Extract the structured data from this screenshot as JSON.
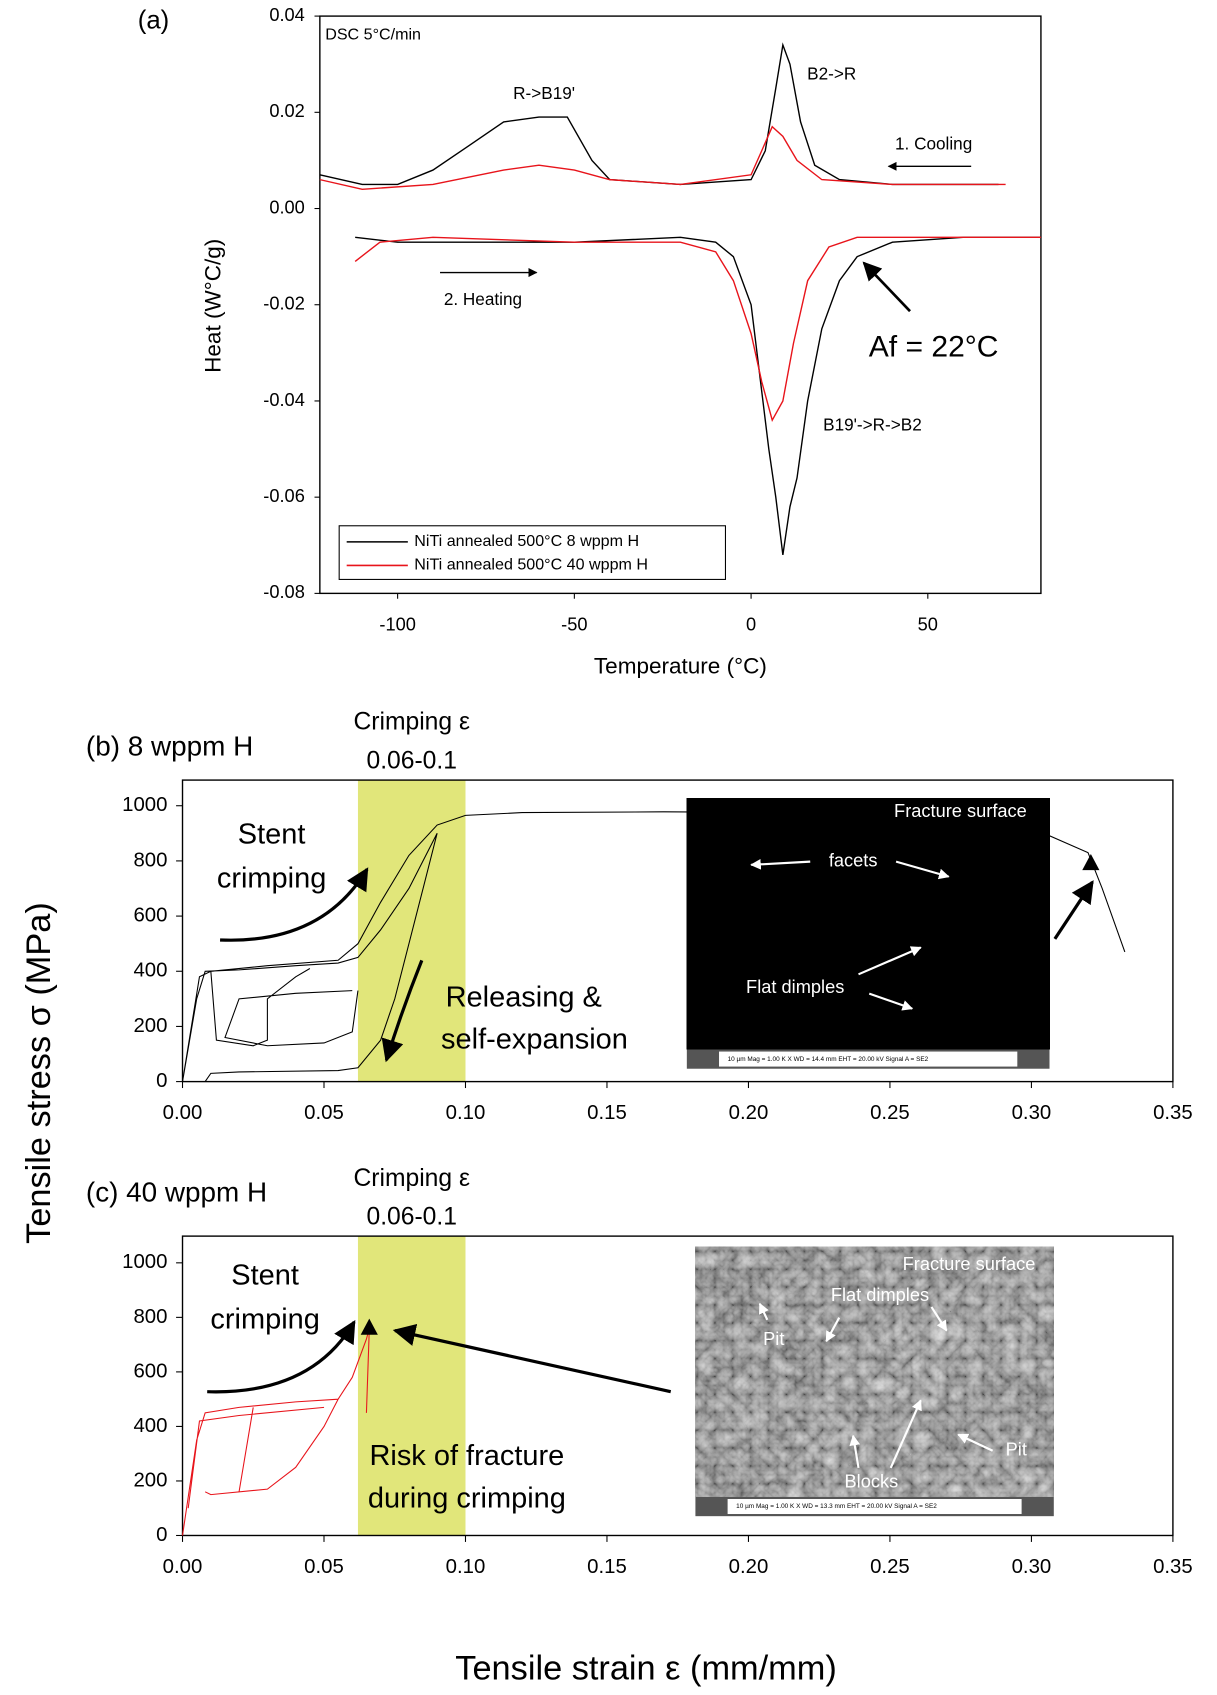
{
  "chart_data": [
    {
      "type": "line",
      "label": "(a)",
      "xlabel": "Temperature (°C)",
      "ylabel": "Heat (W°C/g)",
      "xlim": [
        -122,
        82
      ],
      "ylim": [
        -0.08,
        0.04
      ],
      "xticks": [
        -100,
        -50,
        0,
        50
      ],
      "yticks": [
        0.04,
        0.02,
        {
          "value": 0,
          "label": "0.00"
        },
        -0.02,
        -0.04,
        -0.06,
        -0.08
      ],
      "legend": "lower left",
      "annotations": [
        "DSC 5°C/min",
        "R->B19'",
        "B2->R",
        "1. Cooling",
        "2. Heating",
        "Af = 22°C",
        "B19'->R->B2"
      ],
      "series": [
        {
          "name": "NiTi annealed 500°C 8 wppm H",
          "color": "#000000",
          "x": [
            -122,
            -110,
            -100,
            -90,
            -80,
            -70,
            -60,
            -52,
            -45,
            -40,
            -20,
            0,
            4,
            7,
            9,
            11,
            14,
            18,
            25,
            40,
            70,
            null,
            -112,
            -100,
            -80,
            -50,
            -20,
            -10,
            -5,
            0,
            2,
            5,
            7,
            9,
            11,
            13,
            16,
            20,
            25,
            30,
            40,
            60,
            82
          ],
          "values": [
            0.007,
            0.005,
            0.005,
            0.008,
            0.013,
            0.018,
            0.019,
            0.019,
            0.01,
            0.006,
            0.005,
            0.006,
            0.012,
            0.025,
            0.034,
            0.03,
            0.018,
            0.009,
            0.006,
            0.005,
            0.005,
            null,
            -0.006,
            -0.007,
            -0.007,
            -0.007,
            -0.006,
            -0.007,
            -0.01,
            -0.02,
            -0.032,
            -0.05,
            -0.06,
            -0.072,
            -0.062,
            -0.056,
            -0.04,
            -0.025,
            -0.015,
            -0.01,
            -0.007,
            -0.006,
            -0.006
          ]
        },
        {
          "name": "NiTi annealed 500°C 40 wppm H",
          "color": "#e8141b",
          "x": [
            -122,
            -110,
            -90,
            -70,
            -60,
            -50,
            -40,
            -20,
            0,
            3,
            6,
            9,
            13,
            20,
            40,
            72,
            null,
            -112,
            -105,
            -90,
            -50,
            -20,
            -10,
            -5,
            0,
            3,
            6,
            9,
            12,
            16,
            22,
            30,
            50,
            82
          ],
          "values": [
            0.006,
            0.004,
            0.005,
            0.008,
            0.009,
            0.008,
            0.006,
            0.005,
            0.007,
            0.012,
            0.017,
            0.015,
            0.01,
            0.006,
            0.005,
            0.005,
            null,
            -0.011,
            -0.007,
            -0.006,
            -0.007,
            -0.007,
            -0.009,
            -0.015,
            -0.026,
            -0.036,
            -0.044,
            -0.04,
            -0.028,
            -0.015,
            -0.008,
            -0.006,
            -0.006,
            -0.006
          ]
        }
      ]
    },
    {
      "type": "line",
      "label": "(b) 8 wppm H",
      "ylabel": "Tensile stress σ (MPa)",
      "xlim": [
        0,
        0.35
      ],
      "ylim": [
        0,
        1093
      ],
      "xticks": [
        {
          "value": 0,
          "label": "0.00"
        },
        0.05,
        {
          "value": 0.1,
          "label": "0.10"
        },
        0.15,
        {
          "value": 0.2,
          "label": "0.20"
        },
        0.25,
        {
          "value": 0.3,
          "label": "0.30"
        },
        0.35
      ],
      "yticks": [
        0,
        200,
        400,
        600,
        800,
        1000
      ],
      "shade": {
        "range": [
          0.062,
          0.1
        ],
        "color": "#e1e67a",
        "label": [
          "Crimping ε",
          "0.06-0.1"
        ]
      },
      "annotations": [
        "Stent",
        "crimping",
        "Releasing &",
        "self-expansion"
      ],
      "markers": [
        {
          "x": 0.321,
          "y": 790
        }
      ],
      "inset": {
        "labels": [
          "Fracture surface",
          "facets",
          "Flat dimples"
        ],
        "caption": "10 µm      Mag = 1.00 K X     WD = 14.4 mm    EHT = 20.00 kV   Signal A = SE2"
      },
      "series": [
        {
          "color": "#000000",
          "x": [
            0,
            0.005,
            0.008,
            0.02,
            0.04,
            0.055,
            0.062,
            0.07,
            0.08,
            0.09,
            0.085,
            0.08,
            0.075,
            0.07,
            0.062,
            0.055,
            0.02,
            0.01,
            0.008,
            null,
            0,
            0.006,
            0.01,
            0.03,
            0.055,
            0.062,
            0.07,
            0.08,
            0.09,
            0.1,
            0.12,
            0.17,
            0.22,
            0.27,
            0.3,
            0.32,
            0.325,
            0.333,
            null,
            0.01,
            0.012,
            0.025,
            0.03,
            0.03,
            0.04,
            0.045,
            null,
            0.06,
            0.04,
            0.02,
            0.015,
            0.03,
            0.05,
            0.06,
            0.062
          ],
          "values": [
            0,
            300,
            400,
            405,
            420,
            430,
            450,
            550,
            700,
            900,
            700,
            500,
            300,
            150,
            50,
            40,
            35,
            30,
            0,
            null,
            0,
            380,
            400,
            420,
            440,
            500,
            650,
            820,
            930,
            965,
            975,
            978,
            975,
            955,
            920,
            830,
            700,
            470,
            null,
            400,
            150,
            130,
            150,
            300,
            380,
            410,
            null,
            330,
            320,
            300,
            160,
            130,
            140,
            180,
            330
          ]
        }
      ]
    },
    {
      "type": "line",
      "label": "(c) 40 wppm H",
      "xlabel": "Tensile strain ε (mm/mm)",
      "xlim": [
        0,
        0.35
      ],
      "ylim": [
        0,
        1098
      ],
      "xticks": [
        {
          "value": 0,
          "label": "0.00"
        },
        0.05,
        {
          "value": 0.1,
          "label": "0.10"
        },
        0.15,
        {
          "value": 0.2,
          "label": "0.20"
        },
        0.25,
        {
          "value": 0.3,
          "label": "0.30"
        },
        0.35
      ],
      "yticks": [
        0,
        200,
        400,
        600,
        800,
        1000
      ],
      "shade": {
        "range": [
          0.062,
          0.1
        ],
        "color": "#e1e67a",
        "label": [
          "Crimping ε",
          "0.06-0.1"
        ]
      },
      "annotations": [
        "Stent",
        "crimping",
        "Risk of fracture",
        "during crimping"
      ],
      "markers": [
        {
          "x": 0.066,
          "y": 760
        }
      ],
      "inset": {
        "labels": [
          "Fracture surface",
          "Flat dimples",
          "Pit",
          "Pit",
          "Blocks"
        ],
        "caption": "10 µm      Mag = 1.00 K X     WD = 13.3 mm    EHT = 20.00 kV   Signal A = SE2"
      },
      "series": [
        {
          "color": "#e8141b",
          "x": [
            0,
            0.005,
            0.008,
            0.02,
            0.04,
            0.055,
            0.06,
            0.065,
            0.066,
            0.065,
            null,
            0.055,
            0.05,
            0.04,
            0.03,
            0.01,
            0.008,
            null,
            0.025,
            0.02,
            null,
            0.002,
            0.006,
            0.02,
            0.05
          ],
          "values": [
            0,
            350,
            450,
            470,
            490,
            500,
            580,
            720,
            760,
            450,
            null,
            500,
            400,
            250,
            170,
            150,
            160,
            null,
            470,
            160,
            null,
            100,
            420,
            440,
            470
          ]
        }
      ]
    }
  ]
}
